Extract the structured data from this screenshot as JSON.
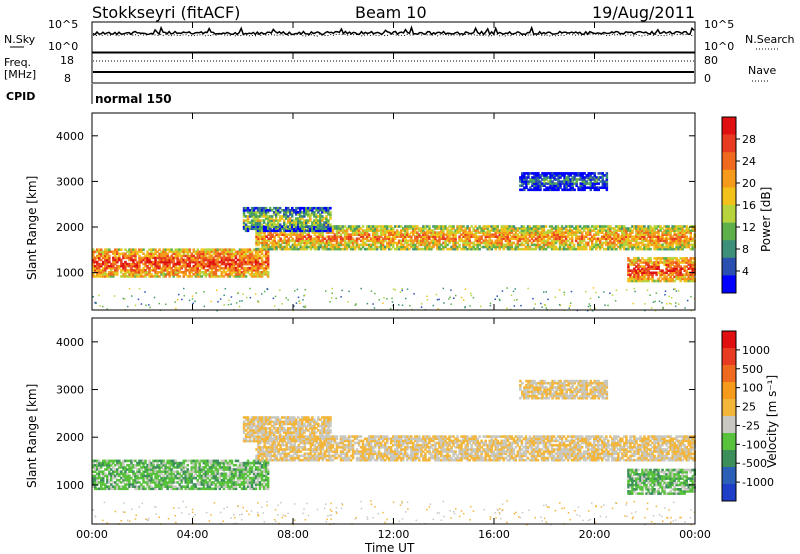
{
  "header": {
    "station": "Stokkseyri (fitACF)",
    "beam": "Beam 10",
    "date": "19/Aug/2011"
  },
  "noise_panel": {
    "left_label": "N.Sky",
    "right_label": "N.Search",
    "left_ticks": [
      "10^5",
      "10^0"
    ],
    "right_ticks": [
      "10^5",
      "10^0"
    ]
  },
  "freq_panel": {
    "left_label_1": "Freq.",
    "left_label_2": "[MHz]",
    "right_label": "Nave",
    "left_ticks": [
      "18",
      "8"
    ],
    "right_ticks": [
      "80",
      "0"
    ]
  },
  "cpid_panel": {
    "label": "CPID",
    "mode": "normal 150"
  },
  "power_panel": {
    "ylabel": "Slant Range [km]",
    "yticks": [
      "4000",
      "3000",
      "2000",
      "1000"
    ],
    "colorbar_label": "Power [dB]",
    "colorbar_ticks": [
      "28",
      "24",
      "20",
      "16",
      "12",
      "8",
      "4"
    ],
    "colors": [
      "#0000ff",
      "#2a4fb0",
      "#3c8f78",
      "#5eb04a",
      "#b7d43c",
      "#f3c21a",
      "#f59a1b",
      "#ef6a1f",
      "#e83b21",
      "#e01010"
    ]
  },
  "velocity_panel": {
    "ylabel": "Slant Range [km]",
    "yticks": [
      "4000",
      "3000",
      "2000",
      "1000"
    ],
    "colorbar_label": "Velocity [m s⁻¹]",
    "colorbar_ticks": [
      "1000",
      "500",
      "100",
      "25",
      "-25",
      "-100",
      "-500",
      "-1000"
    ],
    "colors": [
      "#1e3ec8",
      "#2c5fb8",
      "#3c8f5a",
      "#58c23c",
      "#c8c8c0",
      "#f3b63a",
      "#f59a1b",
      "#ef6a1f",
      "#e83b21",
      "#e01010"
    ]
  },
  "xaxis": {
    "label": "Time UT",
    "ticks": [
      "00:00",
      "04:00",
      "08:00",
      "12:00",
      "16:00",
      "20:00",
      "00:00"
    ]
  },
  "chart_data": {
    "type": "heatmap",
    "title": "Stokkseyri (fitACF)  Beam 10  19/Aug/2011",
    "x_range_hours": [
      0,
      24
    ],
    "y_range_km": [
      180,
      4500
    ],
    "power_scale_db": [
      0,
      30
    ],
    "velocity_scale_ms": [
      -1000,
      1000
    ],
    "echo_regions": [
      {
        "name": "lower band early",
        "t_start": 0.0,
        "t_end": 7.0,
        "range_km": [
          900,
          1500
        ],
        "power_db": 26,
        "velocity_ms": -300
      },
      {
        "name": "main band",
        "t_start": 6.5,
        "t_end": 24.0,
        "range_km": [
          1500,
          2000
        ],
        "power_db": 22,
        "velocity_ms": 0
      },
      {
        "name": "upper band",
        "t_start": 6.0,
        "t_end": 9.5,
        "range_km": [
          1900,
          2400
        ],
        "power_db": 14,
        "velocity_ms": 0
      },
      {
        "name": "evening lower",
        "t_start": 21.3,
        "t_end": 24.0,
        "range_km": [
          800,
          1300
        ],
        "power_db": 26,
        "velocity_ms": -300
      },
      {
        "name": "upper scatter",
        "t_start": 17.0,
        "t_end": 20.5,
        "range_km": [
          2800,
          3200
        ],
        "power_db": 8,
        "velocity_ms": 0
      }
    ]
  }
}
